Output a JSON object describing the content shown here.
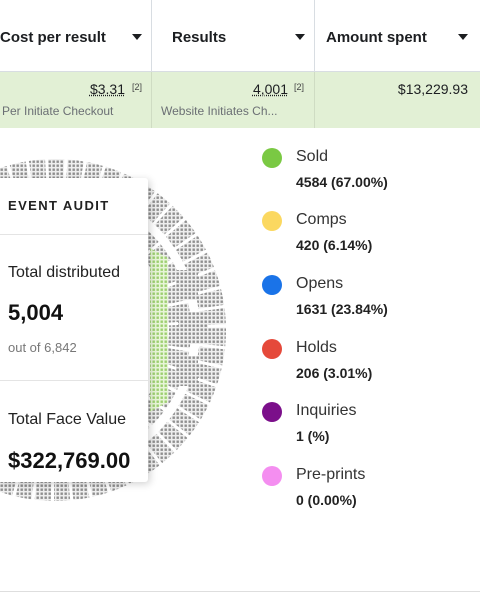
{
  "table": {
    "columns": [
      {
        "label": "Cost per result"
      },
      {
        "label": "Results"
      },
      {
        "label": "Amount spent"
      }
    ],
    "row": {
      "cost_per_result": {
        "value": "$3.31",
        "note": "[2]",
        "sub": "Per Initiate Checkout"
      },
      "results": {
        "value": "4,001",
        "note": "[2]",
        "sub": "Website Initiates Ch..."
      },
      "amount_spent": {
        "value": "$13,229.93"
      }
    }
  },
  "audit": {
    "title": "EVENT AUDIT",
    "distributed_label": "Total distributed",
    "distributed_value": "5,004",
    "distributed_sub": "out of 6,842",
    "face_value_label": "Total Face Value",
    "face_value": "$322,769.00"
  },
  "legend": [
    {
      "name": "Sold",
      "value": "4584 (67.00%)",
      "color": "#7ac943"
    },
    {
      "name": "Comps",
      "value": "420 (6.14%)",
      "color": "#fbd860"
    },
    {
      "name": "Opens",
      "value": "1631 (23.84%)",
      "color": "#1a73e8"
    },
    {
      "name": "Holds",
      "value": "206 (3.01%)",
      "color": "#e5493a"
    },
    {
      "name": "Inquiries",
      "value": "1 (%)",
      "color": "#7b0f8a"
    },
    {
      "name": "Pre-prints",
      "value": "0 (0.00%)",
      "color": "#f48ef0"
    }
  ]
}
